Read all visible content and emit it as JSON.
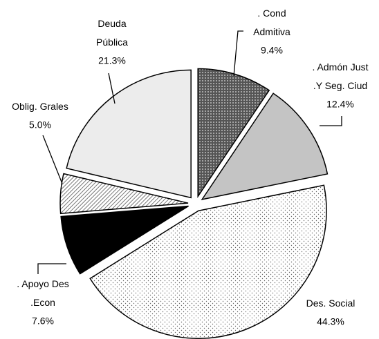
{
  "chart_data": {
    "type": "pie",
    "categories": [
      ". Cond\nAdmitiva",
      ". Admón Just\n.Y Seg. Ciud",
      "Des. Social",
      ". Apoyo Des\n.Econ",
      "Oblig. Grales",
      "Deuda\nPública"
    ],
    "values": [
      9.4,
      12.4,
      44.3,
      7.6,
      5.0,
      21.3
    ],
    "value_labels": [
      "9.4%",
      "12.4%",
      "44.3%",
      "7.6%",
      "5.0%",
      "21.3%"
    ],
    "colors": [
      "#6a6a6a",
      "#c4c4c4",
      "#ffffff",
      "#000000",
      "#d8d8d8",
      "#ececec"
    ],
    "patterns": [
      "dots-dark",
      "none",
      "dots-light",
      "none",
      "hatch",
      "none"
    ]
  }
}
